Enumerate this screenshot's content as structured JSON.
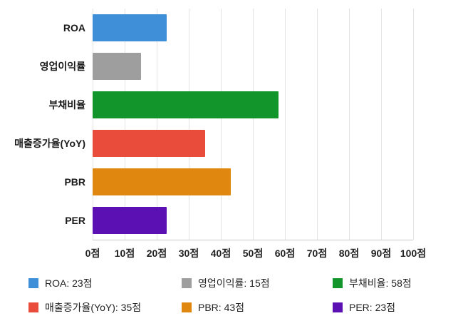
{
  "chart_data": {
    "type": "bar",
    "orientation": "horizontal",
    "title": "",
    "categories": [
      "ROA",
      "영업이익률",
      "부채비율",
      "매출증가율(YoY)",
      "PBR",
      "PER"
    ],
    "values": [
      23,
      15,
      58,
      35,
      43,
      23
    ],
    "value_unit": "점",
    "colors": [
      "#3e8fd8",
      "#9e9e9e",
      "#12962b",
      "#ea4c3c",
      "#e0870f",
      "#5a10b2"
    ],
    "xlim": [
      0,
      100
    ],
    "x_ticks": [
      "0점",
      "10점",
      "20점",
      "30점",
      "40점",
      "50점",
      "60점",
      "70점",
      "80점",
      "90점",
      "100점"
    ],
    "grid": true,
    "legend_position": "bottom",
    "legend": [
      "ROA: 23점",
      "영업이익률: 15점",
      "부채비율: 58점",
      "매출증가율(YoY): 35점",
      "PBR: 43점",
      "PER: 23점"
    ]
  }
}
